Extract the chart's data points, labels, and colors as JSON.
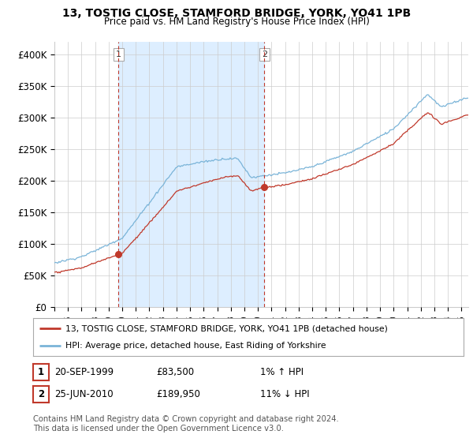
{
  "title": "13, TOSTIG CLOSE, STAMFORD BRIDGE, YORK, YO41 1PB",
  "subtitle": "Price paid vs. HM Land Registry's House Price Index (HPI)",
  "ylim": [
    0,
    420000
  ],
  "yticks": [
    0,
    50000,
    100000,
    150000,
    200000,
    250000,
    300000,
    350000,
    400000
  ],
  "ytick_labels": [
    "£0",
    "£50K",
    "£100K",
    "£150K",
    "£200K",
    "£250K",
    "£300K",
    "£350K",
    "£400K"
  ],
  "sale1_year": 1999.72,
  "sale1_price": 83500,
  "sale2_year": 2010.48,
  "sale2_price": 189950,
  "legend_line1": "13, TOSTIG CLOSE, STAMFORD BRIDGE, YORK, YO41 1PB (detached house)",
  "legend_line2": "HPI: Average price, detached house, East Riding of Yorkshire",
  "table_row1": [
    "1",
    "20-SEP-1999",
    "£83,500",
    "1% ↑ HPI"
  ],
  "table_row2": [
    "2",
    "25-JUN-2010",
    "£189,950",
    "11% ↓ HPI"
  ],
  "footer": "Contains HM Land Registry data © Crown copyright and database right 2024.\nThis data is licensed under the Open Government Licence v3.0.",
  "hpi_color": "#7ab4d8",
  "price_color": "#c0392b",
  "vline_color": "#c0392b",
  "shade_color": "#ddeeff",
  "background_color": "#ffffff",
  "grid_color": "#cccccc",
  "box1_edge_color": "#c0392b",
  "box2_edge_color": "#c0392b"
}
